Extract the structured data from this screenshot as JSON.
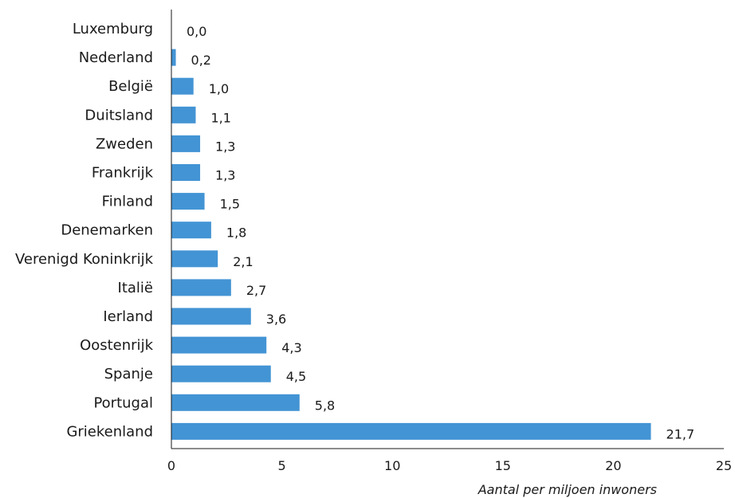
{
  "chart_data": {
    "type": "bar",
    "orientation": "horizontal",
    "categories": [
      "Luxemburg",
      "Nederland",
      "België",
      "Duitsland",
      "Zweden",
      "Frankrijk",
      "Finland",
      "Denemarken",
      "Verenigd Koninkrijk",
      "Italië",
      "Ierland",
      "Oostenrijk",
      "Spanje",
      "Portugal",
      "Griekenland"
    ],
    "values": [
      0.0,
      0.2,
      1.0,
      1.1,
      1.3,
      1.3,
      1.5,
      1.8,
      2.1,
      2.7,
      3.6,
      4.3,
      4.5,
      5.8,
      21.7
    ],
    "value_labels": [
      "0,0",
      "0,2",
      "1,0",
      "1,1",
      "1,3",
      "1,3",
      "1,5",
      "1,8",
      "2,1",
      "2,7",
      "3,6",
      "4,3",
      "4,5",
      "5,8",
      "21,7"
    ],
    "xlim": [
      0,
      25
    ],
    "x_ticks": [
      0,
      5,
      10,
      15,
      20,
      25
    ],
    "xlabel": "Aantal per miljoen inwoners",
    "ylabel": "",
    "title": "",
    "bar_color": "#4394d4",
    "grid": false,
    "legend": "none"
  }
}
